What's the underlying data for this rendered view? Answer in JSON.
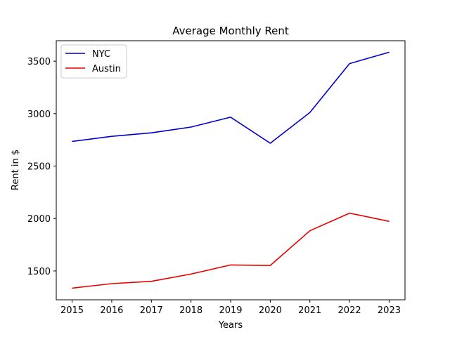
{
  "chart_data": {
    "type": "line",
    "title": "Average Monthly Rent",
    "xlabel": "Years",
    "ylabel": "Rent in $",
    "x": [
      2015,
      2016,
      2017,
      2018,
      2019,
      2020,
      2021,
      2022,
      2023
    ],
    "x_ticks": [
      "2015",
      "2016",
      "2017",
      "2018",
      "2019",
      "2020",
      "2021",
      "2022",
      "2023"
    ],
    "y_ticks": [
      1500,
      2000,
      2500,
      3000,
      3500
    ],
    "y_tick_labels": [
      "1500",
      "2000",
      "2500",
      "3000",
      "3500"
    ],
    "ylim": [
      1225,
      3695
    ],
    "grid": false,
    "legend_position": "top-left",
    "series": [
      {
        "name": "NYC",
        "color": "#0000cc",
        "values": [
          2735,
          2783,
          2817,
          2872,
          2966,
          2718,
          3010,
          3477,
          3585
        ]
      },
      {
        "name": "Austin",
        "color": "#e60000",
        "values": [
          1336,
          1379,
          1401,
          1470,
          1557,
          1552,
          1883,
          2051,
          1973
        ]
      }
    ]
  }
}
